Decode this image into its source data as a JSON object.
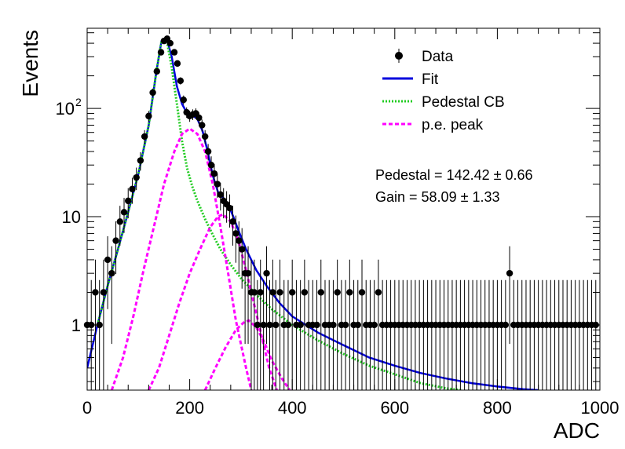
{
  "chart_data": {
    "type": "scatter",
    "title": "",
    "xlabel": "ADC",
    "ylabel": "Events",
    "xlim": [
      0,
      1000
    ],
    "ylim": [
      0.25,
      550
    ],
    "yscale": "log",
    "grid": false,
    "legend_position": "top-right",
    "x_ticks": [
      {
        "value": 0,
        "label": "0"
      },
      {
        "value": 200,
        "label": "200"
      },
      {
        "value": 400,
        "label": "400"
      },
      {
        "value": 600,
        "label": "600"
      },
      {
        "value": 800,
        "label": "800"
      },
      {
        "value": 1000,
        "label": "1000"
      }
    ],
    "y_ticks": [
      {
        "value": 1,
        "label": "1"
      },
      {
        "value": 10,
        "label": "10"
      },
      {
        "value": 100,
        "label": "10",
        "sup": "2"
      }
    ],
    "legend": [
      {
        "label": "Data",
        "kind": "marker",
        "color": "#000000"
      },
      {
        "label": "Fit",
        "kind": "solid",
        "color": "#0000dd"
      },
      {
        "label": "Pedestal CB",
        "kind": "dotted",
        "color": "#22cc22"
      },
      {
        "label": "p.e. peak",
        "kind": "dashed",
        "color": "#ff00ff"
      }
    ],
    "annotations": [
      {
        "text": "Pedestal = 142.42 ± 0.66"
      },
      {
        "text": "Gain = 58.09 ± 1.33"
      }
    ],
    "data_points": [
      {
        "x": 0,
        "y": 1
      },
      {
        "x": 8,
        "y": 1
      },
      {
        "x": 16,
        "y": 2
      },
      {
        "x": 24,
        "y": 1
      },
      {
        "x": 32,
        "y": 2
      },
      {
        "x": 40,
        "y": 4
      },
      {
        "x": 48,
        "y": 3
      },
      {
        "x": 56,
        "y": 6
      },
      {
        "x": 64,
        "y": 9
      },
      {
        "x": 72,
        "y": 11
      },
      {
        "x": 80,
        "y": 14
      },
      {
        "x": 88,
        "y": 18
      },
      {
        "x": 96,
        "y": 23
      },
      {
        "x": 104,
        "y": 33
      },
      {
        "x": 112,
        "y": 55
      },
      {
        "x": 120,
        "y": 85
      },
      {
        "x": 128,
        "y": 140
      },
      {
        "x": 136,
        "y": 220
      },
      {
        "x": 144,
        "y": 330
      },
      {
        "x": 150,
        "y": 420
      },
      {
        "x": 156,
        "y": 440
      },
      {
        "x": 162,
        "y": 400
      },
      {
        "x": 170,
        "y": 330
      },
      {
        "x": 176,
        "y": 260
      },
      {
        "x": 182,
        "y": 180
      },
      {
        "x": 188,
        "y": 120
      },
      {
        "x": 194,
        "y": 92
      },
      {
        "x": 200,
        "y": 85
      },
      {
        "x": 206,
        "y": 88
      },
      {
        "x": 212,
        "y": 90
      },
      {
        "x": 218,
        "y": 82
      },
      {
        "x": 224,
        "y": 70
      },
      {
        "x": 230,
        "y": 55
      },
      {
        "x": 236,
        "y": 40
      },
      {
        "x": 242,
        "y": 30
      },
      {
        "x": 248,
        "y": 25
      },
      {
        "x": 254,
        "y": 20
      },
      {
        "x": 260,
        "y": 16
      },
      {
        "x": 266,
        "y": 14
      },
      {
        "x": 272,
        "y": 13
      },
      {
        "x": 278,
        "y": 12
      },
      {
        "x": 284,
        "y": 9
      },
      {
        "x": 290,
        "y": 7
      },
      {
        "x": 296,
        "y": 6
      },
      {
        "x": 302,
        "y": 5
      },
      {
        "x": 308,
        "y": 3
      },
      {
        "x": 314,
        "y": 3
      },
      {
        "x": 320,
        "y": 2
      },
      {
        "x": 326,
        "y": 2
      },
      {
        "x": 332,
        "y": 1
      },
      {
        "x": 338,
        "y": 2
      },
      {
        "x": 344,
        "y": 1
      },
      {
        "x": 350,
        "y": 3
      },
      {
        "x": 356,
        "y": 1
      },
      {
        "x": 362,
        "y": 2
      },
      {
        "x": 368,
        "y": 1
      },
      {
        "x": 376,
        "y": 2
      },
      {
        "x": 384,
        "y": 1
      },
      {
        "x": 392,
        "y": 1
      },
      {
        "x": 400,
        "y": 2
      },
      {
        "x": 408,
        "y": 1
      },
      {
        "x": 416,
        "y": 1
      },
      {
        "x": 424,
        "y": 2
      },
      {
        "x": 432,
        "y": 1
      },
      {
        "x": 440,
        "y": 1
      },
      {
        "x": 448,
        "y": 1
      },
      {
        "x": 456,
        "y": 2
      },
      {
        "x": 464,
        "y": 1
      },
      {
        "x": 472,
        "y": 1
      },
      {
        "x": 480,
        "y": 1
      },
      {
        "x": 488,
        "y": 2
      },
      {
        "x": 496,
        "y": 1
      },
      {
        "x": 504,
        "y": 1
      },
      {
        "x": 512,
        "y": 2
      },
      {
        "x": 520,
        "y": 1
      },
      {
        "x": 528,
        "y": 1
      },
      {
        "x": 536,
        "y": 2
      },
      {
        "x": 544,
        "y": 1
      },
      {
        "x": 552,
        "y": 1
      },
      {
        "x": 560,
        "y": 1
      },
      {
        "x": 568,
        "y": 2
      },
      {
        "x": 576,
        "y": 1
      },
      {
        "x": 584,
        "y": 1
      },
      {
        "x": 592,
        "y": 1
      },
      {
        "x": 600,
        "y": 1
      },
      {
        "x": 608,
        "y": 1
      },
      {
        "x": 616,
        "y": 1
      },
      {
        "x": 624,
        "y": 1
      },
      {
        "x": 632,
        "y": 1
      },
      {
        "x": 640,
        "y": 1
      },
      {
        "x": 648,
        "y": 1
      },
      {
        "x": 656,
        "y": 1
      },
      {
        "x": 664,
        "y": 1
      },
      {
        "x": 672,
        "y": 1
      },
      {
        "x": 680,
        "y": 1
      },
      {
        "x": 688,
        "y": 1
      },
      {
        "x": 696,
        "y": 1
      },
      {
        "x": 704,
        "y": 1
      },
      {
        "x": 712,
        "y": 1
      },
      {
        "x": 720,
        "y": 1
      },
      {
        "x": 728,
        "y": 1
      },
      {
        "x": 736,
        "y": 1
      },
      {
        "x": 744,
        "y": 1
      },
      {
        "x": 752,
        "y": 1
      },
      {
        "x": 760,
        "y": 1
      },
      {
        "x": 768,
        "y": 1
      },
      {
        "x": 776,
        "y": 1
      },
      {
        "x": 784,
        "y": 1
      },
      {
        "x": 792,
        "y": 1
      },
      {
        "x": 800,
        "y": 1
      },
      {
        "x": 808,
        "y": 1
      },
      {
        "x": 816,
        "y": 1
      },
      {
        "x": 824,
        "y": 3
      },
      {
        "x": 832,
        "y": 1
      },
      {
        "x": 840,
        "y": 1
      },
      {
        "x": 848,
        "y": 1
      },
      {
        "x": 856,
        "y": 1
      },
      {
        "x": 864,
        "y": 1
      },
      {
        "x": 872,
        "y": 1
      },
      {
        "x": 880,
        "y": 1
      },
      {
        "x": 888,
        "y": 1
      },
      {
        "x": 896,
        "y": 1
      },
      {
        "x": 904,
        "y": 1
      },
      {
        "x": 912,
        "y": 1
      },
      {
        "x": 920,
        "y": 1
      },
      {
        "x": 928,
        "y": 1
      },
      {
        "x": 936,
        "y": 1
      },
      {
        "x": 944,
        "y": 1
      },
      {
        "x": 952,
        "y": 1
      },
      {
        "x": 960,
        "y": 1
      },
      {
        "x": 968,
        "y": 1
      },
      {
        "x": 976,
        "y": 1
      },
      {
        "x": 984,
        "y": 1
      },
      {
        "x": 992,
        "y": 1
      }
    ],
    "series": [
      {
        "name": "Fit",
        "color": "#0000dd",
        "points": [
          [
            0,
            0.4
          ],
          [
            20,
            1.0
          ],
          [
            40,
            2.3
          ],
          [
            60,
            5.0
          ],
          [
            80,
            11
          ],
          [
            100,
            25
          ],
          [
            120,
            70
          ],
          [
            135,
            220
          ],
          [
            145,
            420
          ],
          [
            155,
            440
          ],
          [
            165,
            300
          ],
          [
            175,
            160
          ],
          [
            185,
            110
          ],
          [
            195,
            90
          ],
          [
            205,
            86
          ],
          [
            215,
            80
          ],
          [
            225,
            62
          ],
          [
            235,
            40
          ],
          [
            245,
            24
          ],
          [
            255,
            17
          ],
          [
            265,
            15
          ],
          [
            275,
            13
          ],
          [
            285,
            10
          ],
          [
            295,
            7.5
          ],
          [
            310,
            5.0
          ],
          [
            330,
            3.2
          ],
          [
            350,
            2.3
          ],
          [
            375,
            1.6
          ],
          [
            400,
            1.2
          ],
          [
            450,
            0.85
          ],
          [
            500,
            0.65
          ],
          [
            550,
            0.5
          ],
          [
            600,
            0.42
          ],
          [
            650,
            0.36
          ],
          [
            700,
            0.32
          ],
          [
            750,
            0.29
          ],
          [
            800,
            0.27
          ],
          [
            850,
            0.255
          ],
          [
            880,
            0.25
          ]
        ]
      },
      {
        "name": "Pedestal CB",
        "color": "#22cc22",
        "points": [
          [
            20,
            1.0
          ],
          [
            40,
            2.3
          ],
          [
            60,
            5.0
          ],
          [
            80,
            11
          ],
          [
            100,
            25
          ],
          [
            120,
            70
          ],
          [
            135,
            220
          ],
          [
            145,
            420
          ],
          [
            155,
            430
          ],
          [
            165,
            240
          ],
          [
            175,
            110
          ],
          [
            185,
            50
          ],
          [
            195,
            28
          ],
          [
            205,
            19
          ],
          [
            215,
            14
          ],
          [
            230,
            9.5
          ],
          [
            245,
            6.8
          ],
          [
            260,
            5.0
          ],
          [
            280,
            3.6
          ],
          [
            300,
            2.7
          ],
          [
            330,
            1.9
          ],
          [
            360,
            1.4
          ],
          [
            400,
            1.0
          ],
          [
            450,
            0.72
          ],
          [
            500,
            0.54
          ],
          [
            550,
            0.42
          ],
          [
            600,
            0.35
          ],
          [
            650,
            0.29
          ],
          [
            700,
            0.26
          ],
          [
            730,
            0.25
          ]
        ]
      },
      {
        "name": "p.e. peak 1",
        "color": "#ff00ff",
        "points": [
          [
            48,
            0.25
          ],
          [
            70,
            0.5
          ],
          [
            90,
            1.2
          ],
          [
            110,
            3.2
          ],
          [
            130,
            8
          ],
          [
            150,
            20
          ],
          [
            170,
            40
          ],
          [
            185,
            58
          ],
          [
            200,
            65
          ],
          [
            215,
            58
          ],
          [
            230,
            40
          ],
          [
            245,
            20
          ],
          [
            260,
            8
          ],
          [
            275,
            3
          ],
          [
            290,
            1.1
          ],
          [
            310,
            0.4
          ],
          [
            320,
            0.25
          ]
        ]
      },
      {
        "name": "p.e. peak 2",
        "color": "#ff00ff",
        "points": [
          [
            120,
            0.25
          ],
          [
            140,
            0.4
          ],
          [
            160,
            0.8
          ],
          [
            180,
            1.6
          ],
          [
            200,
            3.0
          ],
          [
            220,
            5.0
          ],
          [
            240,
            8.0
          ],
          [
            255,
            10.0
          ],
          [
            265,
            10.5
          ],
          [
            280,
            9.0
          ],
          [
            295,
            6.0
          ],
          [
            310,
            3.2
          ],
          [
            325,
            1.6
          ],
          [
            340,
            0.8
          ],
          [
            355,
            0.4
          ],
          [
            370,
            0.25
          ]
        ]
      },
      {
        "name": "p.e. peak 3",
        "color": "#ff00ff",
        "points": [
          [
            230,
            0.25
          ],
          [
            250,
            0.4
          ],
          [
            270,
            0.62
          ],
          [
            290,
            0.9
          ],
          [
            305,
            1.05
          ],
          [
            315,
            1.1
          ],
          [
            330,
            0.95
          ],
          [
            345,
            0.7
          ],
          [
            360,
            0.47
          ],
          [
            380,
            0.32
          ],
          [
            395,
            0.25
          ]
        ]
      }
    ]
  }
}
